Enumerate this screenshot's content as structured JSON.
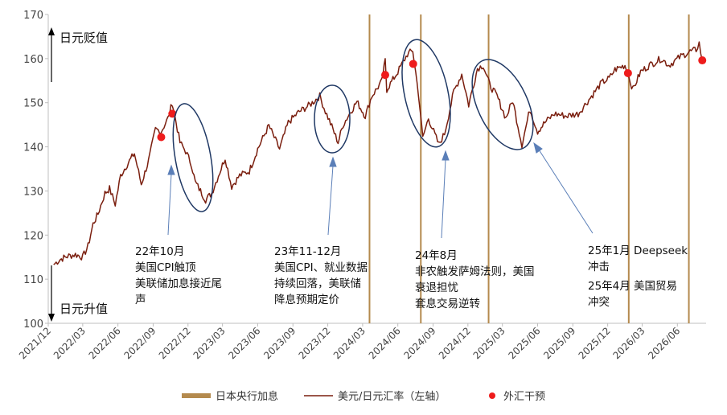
{
  "chart_data": {
    "type": "line",
    "series": [
      {
        "name": "美元/日元汇率（左轴）",
        "color": "#7a1e0e",
        "points": [
          [
            "2021-12-15",
            113.3
          ],
          [
            "2022-01-01",
            114.5
          ],
          [
            "2022-01-20",
            115.2
          ],
          [
            "2022-02-10",
            115.6
          ],
          [
            "2022-03-01",
            115.0
          ],
          [
            "2022-03-15",
            117.5
          ],
          [
            "2022-03-28",
            122.5
          ],
          [
            "2022-04-10",
            124.8
          ],
          [
            "2022-04-28",
            129.5
          ],
          [
            "2022-05-10",
            130.5
          ],
          [
            "2022-05-25",
            127.0
          ],
          [
            "2022-06-08",
            133.5
          ],
          [
            "2022-06-25",
            136.0
          ],
          [
            "2022-07-14",
            138.5
          ],
          [
            "2022-08-01",
            131.5
          ],
          [
            "2022-08-20",
            136.8
          ],
          [
            "2022-09-07",
            144.0
          ],
          [
            "2022-09-22",
            143.5
          ],
          [
            "2022-10-10",
            146.5
          ],
          [
            "2022-10-21",
            150.0
          ],
          [
            "2022-11-10",
            141.0
          ],
          [
            "2022-11-25",
            139.0
          ],
          [
            "2022-12-10",
            136.0
          ],
          [
            "2022-12-20",
            132.0
          ],
          [
            "2023-01-16",
            128.0
          ],
          [
            "2023-02-01",
            129.5
          ],
          [
            "2023-03-08",
            137.5
          ],
          [
            "2023-03-25",
            131.0
          ],
          [
            "2023-04-15",
            133.5
          ],
          [
            "2023-05-10",
            134.5
          ],
          [
            "2023-06-01",
            139.5
          ],
          [
            "2023-06-30",
            144.8
          ],
          [
            "2023-07-28",
            139.5
          ],
          [
            "2023-08-20",
            145.5
          ],
          [
            "2023-09-15",
            147.8
          ],
          [
            "2023-10-15",
            149.5
          ],
          [
            "2023-11-10",
            151.5
          ],
          [
            "2023-11-25",
            148.0
          ],
          [
            "2023-12-05",
            146.0
          ],
          [
            "2023-12-28",
            141.0
          ],
          [
            "2024-01-10",
            145.0
          ],
          [
            "2024-01-30",
            148.0
          ],
          [
            "2024-02-15",
            150.2
          ],
          [
            "2024-03-08",
            147.0
          ],
          [
            "2024-03-25",
            151.5
          ],
          [
            "2024-04-20",
            154.8
          ],
          [
            "2024-04-29",
            159.5
          ],
          [
            "2024-05-03",
            153.0
          ],
          [
            "2024-06-01",
            157.0
          ],
          [
            "2024-06-26",
            161.0
          ],
          [
            "2024-07-10",
            161.8
          ],
          [
            "2024-07-25",
            152.0
          ],
          [
            "2024-08-05",
            142.0
          ],
          [
            "2024-08-20",
            146.5
          ],
          [
            "2024-09-16",
            140.5
          ],
          [
            "2024-10-01",
            143.0
          ],
          [
            "2024-10-25",
            152.5
          ],
          [
            "2024-11-15",
            156.5
          ],
          [
            "2024-12-03",
            149.5
          ],
          [
            "2024-12-26",
            157.8
          ],
          [
            "2025-01-10",
            158.5
          ],
          [
            "2025-01-27",
            154.0
          ],
          [
            "2025-02-15",
            151.5
          ],
          [
            "2025-03-10",
            146.5
          ],
          [
            "2025-03-28",
            150.5
          ],
          [
            "2025-04-21",
            140.5
          ],
          [
            "2025-05-12",
            148.5
          ],
          [
            "2025-06-01",
            143.5
          ],
          [
            "2025-06-20",
            145.5
          ],
          [
            "2025-07-15",
            147.5
          ],
          [
            "2025-08-15",
            147.0
          ],
          [
            "2025-09-15",
            147.5
          ],
          [
            "2025-10-20",
            151.5
          ],
          [
            "2025-11-15",
            154.5
          ],
          [
            "2025-12-05",
            155.5
          ],
          [
            "2025-12-20",
            157.5
          ],
          [
            "2026-01-15",
            158.5
          ],
          [
            "2026-02-05",
            153.0
          ],
          [
            "2026-02-25",
            157.0
          ],
          [
            "2026-03-20",
            158.5
          ],
          [
            "2026-04-20",
            160.0
          ],
          [
            "2026-05-10",
            158.5
          ],
          [
            "2026-06-10",
            160.5
          ],
          [
            "2026-07-01",
            161.5
          ],
          [
            "2026-07-20",
            162.0
          ],
          [
            "2026-07-28",
            163.5
          ],
          [
            "2026-08-05",
            159.5
          ]
        ]
      }
    ],
    "interventions": [
      [
        "2022-09-22",
        142.2
      ],
      [
        "2022-10-21",
        147.5
      ],
      [
        "2024-04-29",
        156.3
      ],
      [
        "2024-07-11",
        158.8
      ],
      [
        "2026-01-23",
        156.7
      ],
      [
        "2026-08-05",
        159.6
      ]
    ],
    "boj_hikes": [
      "2024-03-19",
      "2024-07-31",
      "2025-01-24",
      "2026-01-25",
      "2026-07-01"
    ],
    "ylim": [
      100,
      170
    ],
    "yticks": [
      100,
      110,
      120,
      130,
      140,
      150,
      160,
      170
    ],
    "xticks": [
      "2021/12",
      "2022/03",
      "2022/06",
      "2022/09",
      "2022/12",
      "2023/03",
      "2023/06",
      "2023/09",
      "2023/12",
      "2024/03",
      "2024/06",
      "2024/09",
      "2024/12",
      "2025/03",
      "2025/06",
      "2025/09",
      "2025/12",
      "2026/03",
      "2026/06"
    ],
    "direction_labels": {
      "up": "日元贬值",
      "down": "日元升值"
    },
    "annotations": [
      {
        "lines": [
          "22年10月",
          "美国CPI触顶",
          "美联储加息接近尾",
          "声"
        ]
      },
      {
        "lines": [
          "23年11-12月",
          "美国CPI、就业数据",
          "持续回落，美联储",
          "降息预期定价"
        ]
      },
      {
        "lines": [
          "24年8月",
          "非农触发萨姆法则，美国",
          "衰退担忧",
          "套息交易逆转"
        ]
      },
      {
        "lines": [
          "25年1月 Deepseek",
          "冲击",
          "25年4月 美国贸易",
          "冲突"
        ]
      }
    ],
    "legend": [
      {
        "label": "日本央行加息",
        "type": "bar",
        "color": "#b48a4e"
      },
      {
        "label": "美元/日元汇率（左轴）",
        "type": "line",
        "color": "#7a1e0e"
      },
      {
        "label": "外汇干预",
        "type": "dot",
        "color": "#ee1c1c"
      }
    ],
    "legend_position": "bottom",
    "grid": false
  }
}
